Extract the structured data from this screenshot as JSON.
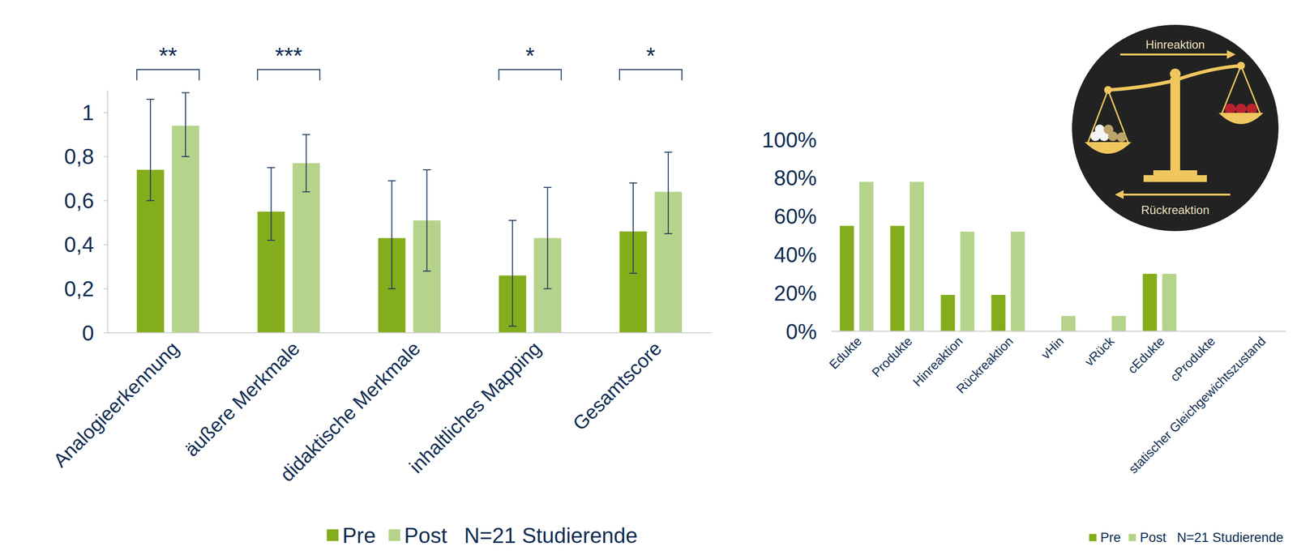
{
  "chart_data": [
    {
      "type": "bar",
      "categories": [
        "Analogieerkennung",
        "äußere Merkmale",
        "didaktische Merkmale",
        "inhaltliches Mapping",
        "Gesamtscore"
      ],
      "series": [
        {
          "name": "Pre",
          "color": "#84ad1c",
          "values": [
            0.74,
            0.55,
            0.43,
            0.26,
            0.46
          ],
          "error_minus": [
            0.14,
            0.13,
            0.23,
            0.23,
            0.19
          ],
          "error_plus": [
            0.32,
            0.2,
            0.26,
            0.25,
            0.22
          ]
        },
        {
          "name": "Post",
          "color": "#b5d38a",
          "values": [
            0.94,
            0.77,
            0.51,
            0.43,
            0.64
          ],
          "error_minus": [
            0.14,
            0.13,
            0.23,
            0.23,
            0.19
          ],
          "error_plus": [
            0.15,
            0.13,
            0.23,
            0.23,
            0.18
          ]
        }
      ],
      "significance": [
        "**",
        "***",
        null,
        "*",
        "*"
      ],
      "annotations": [
        "N=21 Studierende"
      ],
      "ylim": [
        0,
        1.1
      ],
      "yticks": [
        0,
        {
          "value": 0.2,
          "label": "0,2"
        },
        {
          "value": 0.4,
          "label": "0,4"
        },
        {
          "value": 0.6,
          "label": "0,6"
        },
        {
          "value": 0.8,
          "label": "0,8"
        },
        1
      ],
      "grid": false,
      "legend": "bottom"
    },
    {
      "type": "bar",
      "categories": [
        "Edukte",
        "Produkte",
        "Hinreaktion",
        "Rückreaktion",
        "vHin",
        "vRück",
        "cEdukte",
        "cProdukte",
        "statischer Gleichgewichtszustand"
      ],
      "series": [
        {
          "name": "Pre",
          "color": "#84ad1c",
          "values": [
            55,
            55,
            19,
            19,
            0,
            0,
            30,
            null,
            null
          ]
        },
        {
          "name": "Post",
          "color": "#b5d38a",
          "values": [
            78,
            78,
            52,
            52,
            8,
            8,
            30,
            null,
            null
          ]
        }
      ],
      "annotations": [
        "N=21 Studierende"
      ],
      "icon_labels": [
        "Hinreaktion",
        "Rückreaktion"
      ],
      "ylim": [
        0,
        100
      ],
      "yticks": [
        {
          "value": 0,
          "label": "0%"
        },
        {
          "value": 20,
          "label": "20%"
        },
        {
          "value": 40,
          "label": "40%"
        },
        {
          "value": 60,
          "label": "60%"
        },
        {
          "value": 80,
          "label": "80%"
        },
        {
          "value": 100,
          "label": "100%"
        }
      ],
      "grid": false,
      "legend": "bottom-right"
    }
  ]
}
